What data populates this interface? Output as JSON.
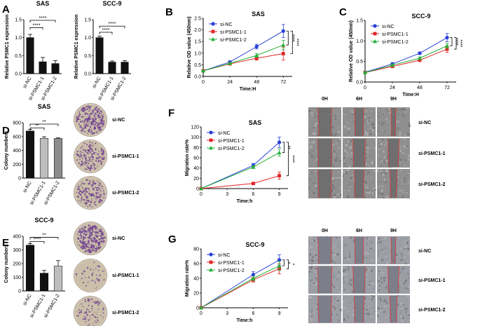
{
  "colors": {
    "nc": "#2a3fd8",
    "p1": "#e02424",
    "p2": "#27b03a",
    "bar_dark": "#111111",
    "bar_mid": "#8c8c8c",
    "bar_light": "#bdbdbd"
  },
  "chart_data": [
    {
      "id": "A1",
      "type": "bar",
      "panel_label": "A",
      "title": "SAS",
      "ylabel": "Relative PSMC1 expression",
      "categories": [
        "si-NC",
        "si-PSMC1-1",
        "si-PSMC1-2"
      ],
      "values": [
        1.0,
        0.33,
        0.28
      ],
      "errors": [
        0.09,
        0.12,
        0.08
      ],
      "ylim": [
        0,
        1.5
      ],
      "yticks": [
        0,
        0.5,
        1,
        1.5
      ],
      "ytick_labels": [
        "0.0",
        "0.5",
        "1.0",
        "1.5"
      ],
      "sig": [
        {
          "from": 0,
          "to": 1,
          "label": "****",
          "at": 1.28
        },
        {
          "from": 0,
          "to": 2,
          "label": "****",
          "at": 1.48
        }
      ]
    },
    {
      "id": "A2",
      "type": "bar",
      "title": "SCC-9",
      "ylabel": "Relative PSMC1 expression",
      "categories": [
        "si-NC",
        "si-PSMC1-1",
        "si-PSMC1-2"
      ],
      "values": [
        1.0,
        0.32,
        0.32
      ],
      "errors": [
        0.04,
        0.03,
        0.04
      ],
      "ylim": [
        0,
        1.5
      ],
      "yticks": [
        0,
        0.5,
        1,
        1.5
      ],
      "ytick_labels": [
        "0.0",
        "0.5",
        "1.0",
        "1.5"
      ],
      "sig": [
        {
          "from": 0,
          "to": 1,
          "label": "****",
          "at": 1.15
        },
        {
          "from": 0,
          "to": 2,
          "label": "****",
          "at": 1.32
        }
      ]
    },
    {
      "id": "B",
      "type": "line",
      "panel_label": "B",
      "title": "SAS",
      "xlabel": "Time:H",
      "ylabel": "Relative OD value (450nm)",
      "x": [
        0,
        24,
        48,
        72
      ],
      "xlim": [
        0,
        80
      ],
      "ylim": [
        0,
        2.5
      ],
      "yticks": [
        0,
        0.5,
        1,
        1.5,
        2,
        2.5
      ],
      "ytick_labels": [
        "0.0",
        "0.5",
        "1.0",
        "1.5",
        "2.0",
        "2.5"
      ],
      "xticks": [
        0,
        24,
        48,
        72
      ],
      "series": [
        {
          "name": "si-NC",
          "values": [
            0.24,
            0.62,
            1.28,
            1.95
          ],
          "errors": [
            0.03,
            0.05,
            0.1,
            0.28
          ]
        },
        {
          "name": "si-PSMC1-1",
          "values": [
            0.24,
            0.54,
            0.78,
            0.98
          ],
          "errors": [
            0.02,
            0.04,
            0.08,
            0.28
          ]
        },
        {
          "name": "si-PSMC1-2",
          "values": [
            0.24,
            0.56,
            0.9,
            1.35
          ],
          "errors": [
            0.02,
            0.04,
            0.08,
            0.2
          ]
        }
      ],
      "sig": [
        {
          "label": "****"
        },
        {
          "label": "****"
        }
      ]
    },
    {
      "id": "C",
      "type": "line",
      "panel_label": "C",
      "title": "SCC-9",
      "xlabel": "Time:H",
      "ylabel": "Relative OD value (450nm)",
      "x": [
        0,
        24,
        48,
        72
      ],
      "xlim": [
        0,
        80
      ],
      "ylim": [
        0,
        1.5
      ],
      "yticks": [
        0,
        0.5,
        1,
        1.5
      ],
      "ytick_labels": [
        "0.0",
        "0.5",
        "1.0",
        "1.5"
      ],
      "xticks": [
        0,
        24,
        48,
        72
      ],
      "series": [
        {
          "name": "si-NC",
          "values": [
            0.24,
            0.44,
            0.7,
            1.08
          ],
          "errors": [
            0.02,
            0.03,
            0.03,
            0.1
          ]
        },
        {
          "name": "si-PSMC1-1",
          "values": [
            0.23,
            0.38,
            0.53,
            0.8
          ],
          "errors": [
            0.02,
            0.03,
            0.03,
            0.08
          ]
        },
        {
          "name": "si-PSMC1-2",
          "values": [
            0.23,
            0.41,
            0.58,
            0.88
          ],
          "errors": [
            0.02,
            0.03,
            0.03,
            0.06
          ]
        }
      ],
      "sig": [
        {
          "label": "****"
        },
        {
          "label": "****"
        }
      ]
    },
    {
      "id": "D",
      "type": "bar",
      "panel_label": "D",
      "title": "SAS",
      "ylabel": "Colony numbers",
      "categories": [
        "si-NC",
        "si-PSMC1-1",
        "si-PSMC1-2"
      ],
      "values": [
        680,
        575,
        572
      ],
      "errors": [
        25,
        22,
        8
      ],
      "ylim": [
        0,
        800
      ],
      "yticks": [
        0,
        200,
        400,
        600,
        800
      ],
      "ytick_labels": [
        "0",
        "200",
        "400",
        "600",
        "800"
      ],
      "sig": [
        {
          "from": 0,
          "to": 1,
          "label": "**",
          "at": 725
        },
        {
          "from": 0,
          "to": 2,
          "label": "**",
          "at": 780
        }
      ],
      "image_labels": [
        "si-NC",
        "si-PSMC1-1",
        "si-PSMC1-2"
      ]
    },
    {
      "id": "E",
      "type": "bar",
      "panel_label": "E",
      "title": "SCC-9",
      "ylabel": "Colony numbers",
      "categories": [
        "si-NC",
        "si-PSMC1-1",
        "si-PSMC1-2"
      ],
      "values": [
        335,
        130,
        182
      ],
      "errors": [
        12,
        20,
        40
      ],
      "ylim": [
        0,
        400
      ],
      "yticks": [
        0,
        100,
        200,
        300,
        400
      ],
      "ytick_labels": [
        "0",
        "100",
        "200",
        "300",
        "400"
      ],
      "sig": [
        {
          "from": 0,
          "to": 1,
          "label": "****",
          "at": 362
        },
        {
          "from": 0,
          "to": 2,
          "label": "**",
          "at": 392
        }
      ],
      "image_labels": [
        "si-NC",
        "si-PSMC1-1",
        "si-PSMC1-2"
      ]
    },
    {
      "id": "F",
      "type": "line",
      "panel_label": "F",
      "title": "SAS",
      "xlabel": "Time:h",
      "ylabel": "Migration rate%",
      "x": [
        0,
        6,
        9
      ],
      "xlim": [
        0,
        10
      ],
      "ylim": [
        0,
        120
      ],
      "yticks": [
        0,
        20,
        40,
        60,
        80,
        100,
        120
      ],
      "ytick_labels": [
        "0",
        "20",
        "40",
        "60",
        "80",
        "100",
        "120"
      ],
      "xticks": [
        0,
        3,
        6,
        9
      ],
      "series": [
        {
          "name": "si-NC",
          "values": [
            0,
            45,
            90
          ],
          "errors": [
            0,
            4,
            10
          ]
        },
        {
          "name": "si-PSMC1-1",
          "values": [
            0,
            10,
            25
          ],
          "errors": [
            0,
            2,
            7
          ]
        },
        {
          "name": "si-PSMC1-2",
          "values": [
            0,
            42,
            70
          ],
          "errors": [
            0,
            3,
            7
          ]
        }
      ],
      "sig": [
        {
          "label": "****"
        },
        {
          "label": "**"
        }
      ],
      "image_columns": [
        "0H",
        "6H",
        "9H"
      ],
      "image_rows": [
        "si-NC",
        "si-PSMC1-1",
        "si-PSMC1-2"
      ]
    },
    {
      "id": "G",
      "type": "line",
      "panel_label": "G",
      "title": "SCC-9",
      "xlabel": "Time:h",
      "ylabel": "Migration rate%",
      "x": [
        0,
        6,
        9
      ],
      "xlim": [
        0,
        10
      ],
      "ylim": [
        0,
        80
      ],
      "yticks": [
        0,
        20,
        40,
        60,
        80
      ],
      "ytick_labels": [
        "0",
        "20",
        "40",
        "60",
        "80"
      ],
      "xticks": [
        0,
        3,
        6,
        9
      ],
      "series": [
        {
          "name": "si-NC",
          "values": [
            0,
            45,
            65
          ],
          "errors": [
            0,
            4,
            7
          ]
        },
        {
          "name": "si-PSMC1-1",
          "values": [
            0,
            38,
            53
          ],
          "errors": [
            0,
            3,
            7
          ]
        },
        {
          "name": "si-PSMC1-2",
          "values": [
            0,
            40,
            57
          ],
          "errors": [
            0,
            3,
            6
          ]
        }
      ],
      "sig": [
        {
          "label": "*"
        },
        {
          "label": "*"
        }
      ],
      "image_columns": [
        "0H",
        "6H",
        "9H"
      ],
      "image_rows": [
        "si-NC",
        "si-PSMC1-1",
        "si-PSMC1-2"
      ]
    }
  ]
}
